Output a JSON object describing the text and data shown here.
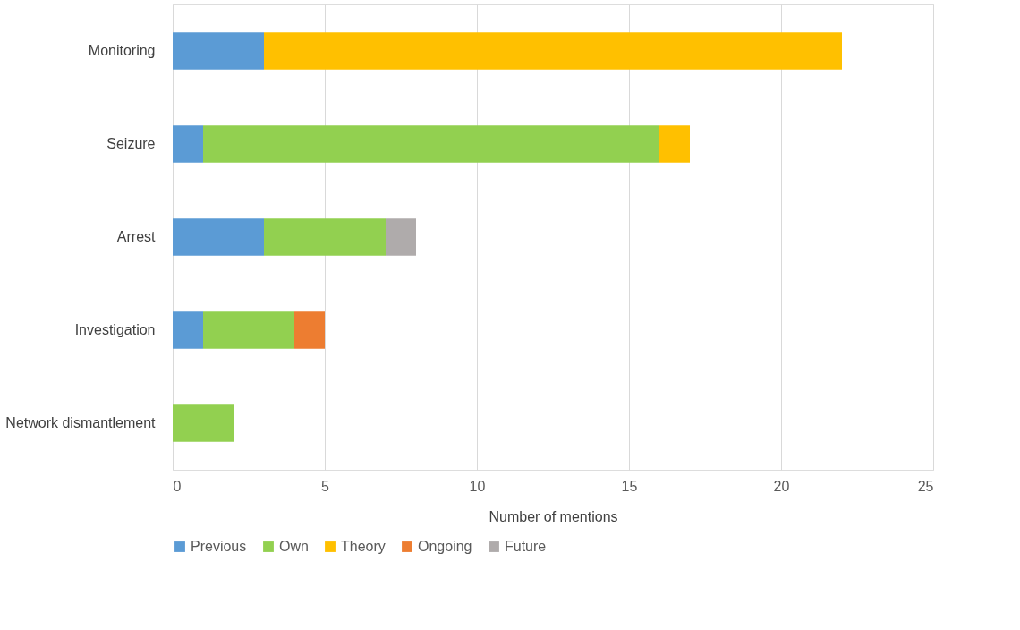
{
  "chart_data": {
    "type": "bar",
    "orientation": "horizontal",
    "stacked": true,
    "categories": [
      "Monitoring",
      "Seizure",
      "Arrest",
      "Investigation",
      "Network dismantlement"
    ],
    "series": [
      {
        "name": "Previous",
        "color": "#5b9bd5",
        "values": [
          3,
          1,
          3,
          1,
          null
        ]
      },
      {
        "name": "Own",
        "color": "#92d050",
        "values": [
          null,
          15,
          4,
          3,
          2
        ]
      },
      {
        "name": "Theory",
        "color": "#ffc000",
        "values": [
          19,
          1,
          null,
          null,
          null
        ]
      },
      {
        "name": "Ongoing",
        "color": "#ed7d31",
        "values": [
          null,
          null,
          null,
          1,
          null
        ]
      },
      {
        "name": "Future",
        "color": "#afabab",
        "values": [
          null,
          null,
          1,
          null,
          null
        ]
      }
    ],
    "xlabel": "Number of mentions",
    "xlim": [
      0,
      25
    ],
    "xticks": [
      0,
      5,
      10,
      15,
      20,
      25
    ],
    "grid": "x",
    "legend": "bottom"
  }
}
